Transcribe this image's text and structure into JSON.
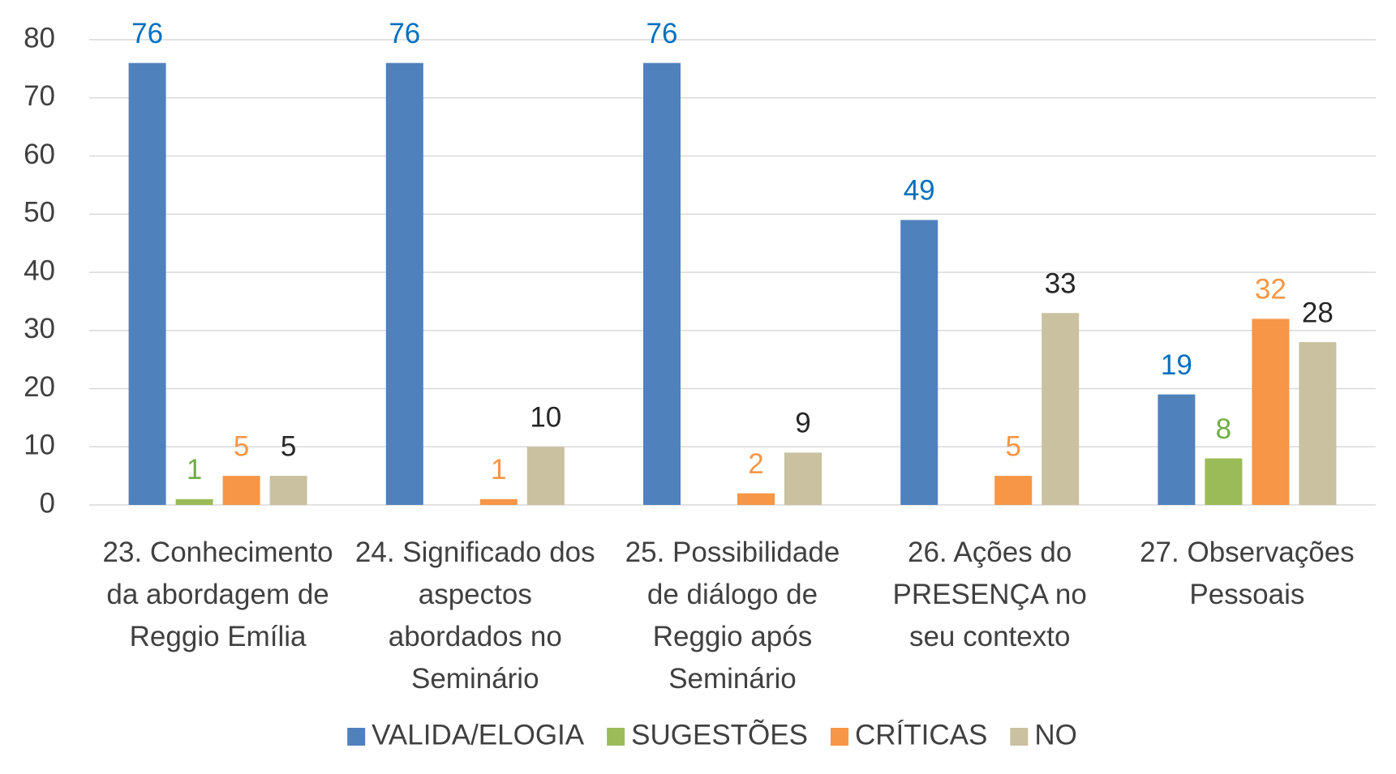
{
  "chart_data": {
    "type": "bar",
    "categories": [
      "23. Conhecimento da abordagem de Reggio Emília",
      "24. Significado dos aspectos abordados no Seminário",
      "25. Possibilidade de diálogo de Reggio após Seminário",
      "26. Ações do PRESENÇA no seu contexto",
      "27. Observações Pessoais"
    ],
    "series": [
      {
        "name": "VALIDA/ELOGIA",
        "color": "#4f81bd",
        "label_color": "#0070c0",
        "values": [
          76,
          76,
          76,
          49,
          19
        ]
      },
      {
        "name": "SUGESTÕES",
        "color": "#9bbb59",
        "label_color": "#70ad47",
        "values": [
          1,
          null,
          null,
          null,
          8
        ]
      },
      {
        "name": "CRÍTICAS",
        "color": "#f79646",
        "label_color": "#f79646",
        "values": [
          5,
          1,
          2,
          5,
          32
        ]
      },
      {
        "name": "NO",
        "color": "#c9c19f",
        "label_color": "#262626",
        "values": [
          5,
          10,
          9,
          33,
          28
        ]
      }
    ],
    "ylim": [
      0,
      80
    ],
    "yticks": [
      0,
      10,
      20,
      30,
      40,
      50,
      60,
      70,
      80
    ],
    "grid": true,
    "legend": "bottom"
  }
}
